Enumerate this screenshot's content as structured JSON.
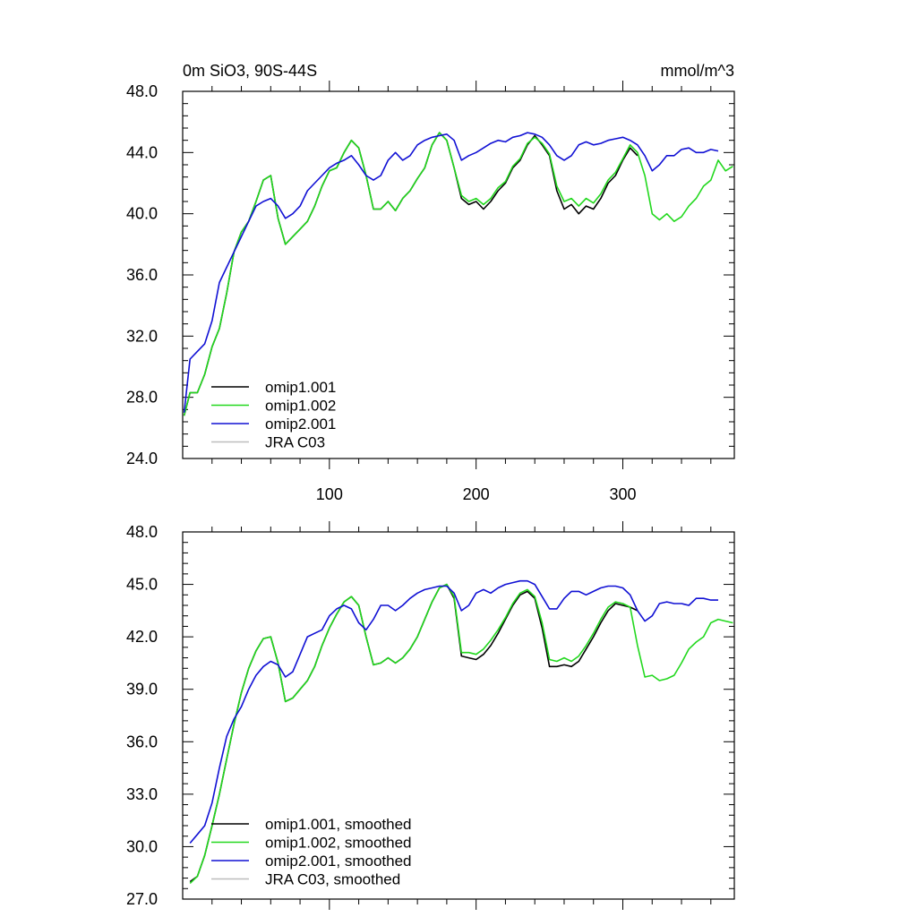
{
  "chart_data": [
    {
      "type": "line",
      "title_left": "0m SiO3, 90S-44S",
      "title_right": "mmol/m^3",
      "xlim": [
        0,
        376
      ],
      "ylim": [
        24,
        48
      ],
      "yticks": [
        "48.0",
        "44.0",
        "40.0",
        "36.0",
        "32.0",
        "28.0",
        "24.0"
      ],
      "ytick_values": [
        48,
        44,
        40,
        36,
        32,
        28,
        24
      ],
      "xticks": [
        "100",
        "200",
        "300"
      ],
      "xtick_values": [
        100,
        200,
        300
      ],
      "series": [
        {
          "name": "omip1.001",
          "color": "#000000",
          "x": [
            1,
            5,
            10,
            15,
            20,
            25,
            30,
            35,
            40,
            45,
            50,
            55,
            60,
            65,
            70,
            75,
            80,
            85,
            90,
            95,
            100,
            105,
            110,
            115,
            120,
            125,
            130,
            135,
            140,
            145,
            150,
            155,
            160,
            165,
            170,
            175,
            180,
            185,
            190,
            195,
            200,
            205,
            210,
            215,
            220,
            225,
            230,
            235,
            240,
            245,
            250,
            255,
            260,
            265,
            270,
            275,
            280,
            285,
            290,
            295,
            300,
            305,
            310
          ],
          "y": [
            26.8,
            28.3,
            28.3,
            29.5,
            31.3,
            32.5,
            34.8,
            37.5,
            38.8,
            39.5,
            40.8,
            42.2,
            42.5,
            39.7,
            38.0,
            38.5,
            39.0,
            39.5,
            40.5,
            41.8,
            42.8,
            43.0,
            44.0,
            44.8,
            44.3,
            42.5,
            40.3,
            40.3,
            40.8,
            40.2,
            41.0,
            41.5,
            42.3,
            43.0,
            44.5,
            45.3,
            44.8,
            43.0,
            41.0,
            40.6,
            40.8,
            40.3,
            40.8,
            41.5,
            42.0,
            43.0,
            43.5,
            44.5,
            45.1,
            44.5,
            43.8,
            41.5,
            40.3,
            40.6,
            40.0,
            40.5,
            40.3,
            41.0,
            42.0,
            42.5,
            43.5,
            44.3,
            43.8
          ]
        },
        {
          "name": "omip1.002",
          "color": "#22d81e",
          "x": [
            1,
            5,
            10,
            15,
            20,
            25,
            30,
            35,
            40,
            45,
            50,
            55,
            60,
            65,
            70,
            75,
            80,
            85,
            90,
            95,
            100,
            105,
            110,
            115,
            120,
            125,
            130,
            135,
            140,
            145,
            150,
            155,
            160,
            165,
            170,
            175,
            180,
            185,
            190,
            195,
            200,
            205,
            210,
            215,
            220,
            225,
            230,
            235,
            240,
            245,
            250,
            255,
            260,
            265,
            270,
            275,
            280,
            285,
            290,
            295,
            300,
            305,
            310,
            315,
            320,
            325,
            330,
            335,
            340,
            345,
            350,
            355,
            360,
            365,
            370,
            375
          ],
          "y": [
            26.8,
            28.3,
            28.3,
            29.5,
            31.3,
            32.5,
            34.8,
            37.5,
            38.8,
            39.5,
            40.8,
            42.2,
            42.5,
            39.7,
            38.0,
            38.5,
            39.0,
            39.5,
            40.5,
            41.8,
            42.8,
            43.0,
            44.0,
            44.8,
            44.3,
            42.5,
            40.3,
            40.3,
            40.8,
            40.2,
            41.0,
            41.5,
            42.3,
            43.0,
            44.5,
            45.3,
            44.8,
            43.0,
            41.2,
            40.8,
            41.0,
            40.6,
            41.0,
            41.7,
            42.1,
            43.1,
            43.6,
            44.6,
            45.0,
            44.6,
            43.9,
            41.8,
            40.8,
            41.0,
            40.5,
            41.0,
            40.7,
            41.3,
            42.2,
            42.7,
            43.6,
            44.5,
            44.0,
            42.5,
            40.0,
            39.6,
            40.0,
            39.5,
            39.8,
            40.5,
            41.0,
            41.8,
            42.2,
            43.5,
            42.8,
            43.1
          ]
        },
        {
          "name": "omip2.001",
          "color": "#1010d4",
          "x": [
            1,
            5,
            10,
            15,
            20,
            25,
            30,
            35,
            40,
            45,
            50,
            55,
            60,
            65,
            70,
            75,
            80,
            85,
            90,
            95,
            100,
            105,
            110,
            115,
            120,
            125,
            130,
            135,
            140,
            145,
            150,
            155,
            160,
            165,
            170,
            175,
            180,
            185,
            190,
            195,
            200,
            205,
            210,
            215,
            220,
            225,
            230,
            235,
            240,
            245,
            250,
            255,
            260,
            265,
            270,
            275,
            280,
            285,
            290,
            295,
            300,
            305,
            310,
            315,
            320,
            325,
            330,
            335,
            340,
            345,
            350,
            355,
            360,
            365
          ],
          "y": [
            27.0,
            30.5,
            31.0,
            31.5,
            33.0,
            35.5,
            36.5,
            37.5,
            38.5,
            39.5,
            40.5,
            40.8,
            41.0,
            40.5,
            39.7,
            40.0,
            40.5,
            41.5,
            42.0,
            42.5,
            43.0,
            43.3,
            43.5,
            43.8,
            43.2,
            42.5,
            42.2,
            42.5,
            43.5,
            44.0,
            43.5,
            43.8,
            44.5,
            44.8,
            45.0,
            45.1,
            45.2,
            44.8,
            43.5,
            43.8,
            44.0,
            44.3,
            44.6,
            44.8,
            44.7,
            45.0,
            45.1,
            45.3,
            45.2,
            45.0,
            44.5,
            43.8,
            43.5,
            43.8,
            44.5,
            44.7,
            44.5,
            44.6,
            44.8,
            44.9,
            45.0,
            44.8,
            44.5,
            43.8,
            42.8,
            43.2,
            43.8,
            43.8,
            44.2,
            44.3,
            44.0,
            44.0,
            44.2,
            44.1
          ]
        },
        {
          "name": "JRA C03",
          "color": "#bdbdbd",
          "x": [],
          "y": []
        }
      ]
    },
    {
      "type": "line",
      "xlim": [
        0,
        376
      ],
      "ylim": [
        27,
        48
      ],
      "yticks": [
        "48.0",
        "45.0",
        "42.0",
        "39.0",
        "36.0",
        "33.0",
        "30.0",
        "27.0"
      ],
      "ytick_values": [
        48,
        45,
        42,
        39,
        36,
        33,
        30,
        27
      ],
      "xticks": [],
      "xtick_values": [
        100,
        200,
        300
      ],
      "series": [
        {
          "name": "omip1.001, smoothed",
          "color": "#000000",
          "x": [
            5,
            10,
            15,
            20,
            25,
            30,
            35,
            40,
            45,
            50,
            55,
            60,
            65,
            70,
            75,
            80,
            85,
            90,
            95,
            100,
            105,
            110,
            115,
            120,
            125,
            130,
            135,
            140,
            145,
            150,
            155,
            160,
            165,
            170,
            175,
            180,
            185,
            190,
            195,
            200,
            205,
            210,
            215,
            220,
            225,
            230,
            235,
            240,
            245,
            250,
            255,
            260,
            265,
            270,
            275,
            280,
            285,
            290,
            295,
            300,
            305,
            310
          ],
          "y": [
            28.0,
            28.3,
            29.5,
            31.2,
            33.0,
            35.0,
            37.0,
            38.8,
            40.2,
            41.2,
            41.9,
            42.0,
            40.5,
            38.3,
            38.5,
            39.0,
            39.5,
            40.3,
            41.5,
            42.5,
            43.3,
            44.0,
            44.3,
            43.8,
            42.0,
            40.4,
            40.5,
            40.8,
            40.5,
            40.8,
            41.3,
            42.0,
            43.0,
            44.0,
            44.8,
            45.0,
            44.2,
            40.9,
            40.8,
            40.7,
            41.0,
            41.5,
            42.2,
            43.0,
            43.8,
            44.4,
            44.6,
            44.2,
            42.5,
            40.3,
            40.3,
            40.4,
            40.3,
            40.6,
            41.3,
            42.0,
            42.8,
            43.5,
            43.9,
            43.8,
            43.7,
            43.5
          ]
        },
        {
          "name": "omip1.002, smoothed",
          "color": "#22d81e",
          "x": [
            5,
            10,
            15,
            20,
            25,
            30,
            35,
            40,
            45,
            50,
            55,
            60,
            65,
            70,
            75,
            80,
            85,
            90,
            95,
            100,
            105,
            110,
            115,
            120,
            125,
            130,
            135,
            140,
            145,
            150,
            155,
            160,
            165,
            170,
            175,
            180,
            185,
            190,
            195,
            200,
            205,
            210,
            215,
            220,
            225,
            230,
            235,
            240,
            245,
            250,
            255,
            260,
            265,
            270,
            275,
            280,
            285,
            290,
            295,
            300,
            305,
            310,
            315,
            320,
            325,
            330,
            335,
            340,
            345,
            350,
            355,
            360,
            365,
            370,
            375
          ],
          "y": [
            27.9,
            28.3,
            29.5,
            31.2,
            33.0,
            35.0,
            37.0,
            38.8,
            40.2,
            41.2,
            41.9,
            42.0,
            40.5,
            38.3,
            38.5,
            39.0,
            39.5,
            40.3,
            41.5,
            42.5,
            43.3,
            44.0,
            44.3,
            43.8,
            42.0,
            40.4,
            40.5,
            40.8,
            40.5,
            40.8,
            41.3,
            42.0,
            43.0,
            44.0,
            44.8,
            45.0,
            44.3,
            41.1,
            41.1,
            41.0,
            41.3,
            41.8,
            42.4,
            43.1,
            43.9,
            44.5,
            44.7,
            44.3,
            42.8,
            40.7,
            40.6,
            40.8,
            40.6,
            40.9,
            41.5,
            42.2,
            43.0,
            43.7,
            44.0,
            43.9,
            43.7,
            41.5,
            39.7,
            39.8,
            39.5,
            39.6,
            39.8,
            40.5,
            41.3,
            41.7,
            42.0,
            42.8,
            43.0,
            42.9,
            42.8
          ]
        },
        {
          "name": "omip2.001, smoothed",
          "color": "#1010d4",
          "x": [
            5,
            10,
            15,
            20,
            25,
            30,
            35,
            40,
            45,
            50,
            55,
            60,
            65,
            70,
            75,
            80,
            85,
            90,
            95,
            100,
            105,
            110,
            115,
            120,
            125,
            130,
            135,
            140,
            145,
            150,
            155,
            160,
            165,
            170,
            175,
            180,
            185,
            190,
            195,
            200,
            205,
            210,
            215,
            220,
            225,
            230,
            235,
            240,
            245,
            250,
            255,
            260,
            265,
            270,
            275,
            280,
            285,
            290,
            295,
            300,
            305,
            310,
            315,
            320,
            325,
            330,
            335,
            340,
            345,
            350,
            355,
            360,
            365
          ],
          "y": [
            30.2,
            30.7,
            31.2,
            32.5,
            34.5,
            36.3,
            37.3,
            38.0,
            39.0,
            39.8,
            40.3,
            40.6,
            40.4,
            39.7,
            40.0,
            41.0,
            42.0,
            42.2,
            42.4,
            43.2,
            43.6,
            43.8,
            43.6,
            42.8,
            42.4,
            43.0,
            43.8,
            43.8,
            43.5,
            43.8,
            44.2,
            44.5,
            44.7,
            44.8,
            44.9,
            44.9,
            44.5,
            43.5,
            43.8,
            44.5,
            44.7,
            44.5,
            44.8,
            45.0,
            45.1,
            45.2,
            45.2,
            45.0,
            44.3,
            43.6,
            43.6,
            44.2,
            44.6,
            44.6,
            44.4,
            44.6,
            44.8,
            44.9,
            44.9,
            44.8,
            44.4,
            43.5,
            42.9,
            43.2,
            43.9,
            44.0,
            43.9,
            43.9,
            43.8,
            44.2,
            44.2,
            44.1,
            44.1
          ]
        },
        {
          "name": "JRA C03, smoothed",
          "color": "#bdbdbd",
          "x": [],
          "y": []
        }
      ]
    }
  ]
}
